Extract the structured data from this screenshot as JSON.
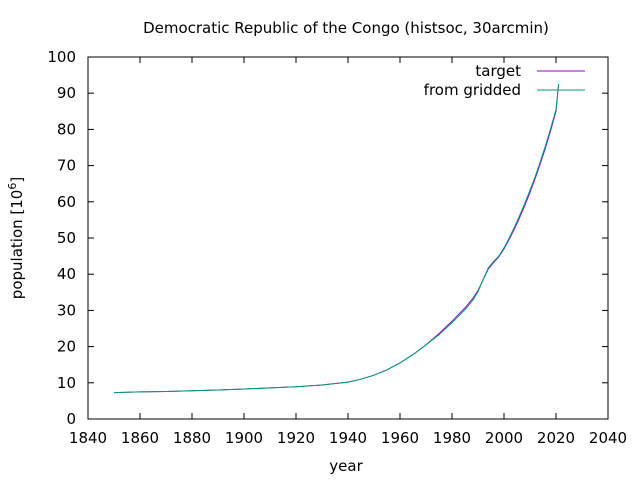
{
  "chart_data": {
    "type": "line",
    "title": "Democratic Republic of the Congo (histsoc, 30arcmin)",
    "xlabel": "year",
    "ylabel_main": "population [10",
    "ylabel_exp": "6",
    "ylabel_close": "]",
    "xlim": [
      1840,
      2040
    ],
    "ylim": [
      0,
      100
    ],
    "x_ticks": [
      1840,
      1860,
      1880,
      1900,
      1920,
      1940,
      1960,
      1980,
      2000,
      2020,
      2040
    ],
    "y_ticks": [
      0,
      10,
      20,
      30,
      40,
      50,
      60,
      70,
      80,
      90,
      100
    ],
    "grid": false,
    "legend_position": "top-right",
    "series": [
      {
        "name": "target",
        "color": "#9400d3",
        "x": [
          1850,
          1860,
          1870,
          1880,
          1890,
          1900,
          1910,
          1920,
          1930,
          1940,
          1945,
          1950,
          1955,
          1960,
          1965,
          1970,
          1975,
          1980,
          1985,
          1988,
          1990,
          1992,
          1994,
          1996,
          1998,
          2000,
          2002,
          2004,
          2006,
          2008,
          2010,
          2012,
          2014,
          2016,
          2018,
          2020,
          2021
        ],
        "y": [
          7.3,
          7.5,
          7.6,
          7.8,
          8.0,
          8.3,
          8.6,
          8.9,
          9.4,
          10.2,
          11.0,
          12.1,
          13.6,
          15.5,
          17.8,
          20.5,
          23.6,
          27.0,
          30.7,
          33.3,
          35.5,
          38.5,
          41.5,
          43.2,
          44.8,
          47.0,
          49.6,
          52.5,
          55.6,
          59.0,
          62.6,
          66.5,
          70.6,
          75.0,
          79.8,
          85.0,
          92.5
        ]
      },
      {
        "name": "from gridded",
        "color": "#009e73",
        "x": [
          1850,
          1860,
          1870,
          1880,
          1890,
          1900,
          1910,
          1920,
          1930,
          1940,
          1945,
          1950,
          1955,
          1960,
          1965,
          1970,
          1975,
          1980,
          1985,
          1988,
          1990,
          1992,
          1994,
          1996,
          1998,
          2000,
          2002,
          2004,
          2006,
          2008,
          2010,
          2012,
          2014,
          2016,
          2018,
          2020,
          2021
        ],
        "y": [
          7.3,
          7.5,
          7.6,
          7.8,
          8.0,
          8.3,
          8.6,
          8.9,
          9.4,
          10.2,
          11.0,
          12.1,
          13.6,
          15.5,
          17.8,
          20.5,
          23.3,
          26.6,
          30.2,
          32.8,
          35.2,
          38.6,
          41.8,
          43.5,
          45.0,
          47.3,
          50.0,
          53.0,
          56.2,
          59.6,
          63.2,
          67.0,
          71.2,
          75.6,
          80.4,
          85.5,
          92.6
        ]
      }
    ]
  }
}
